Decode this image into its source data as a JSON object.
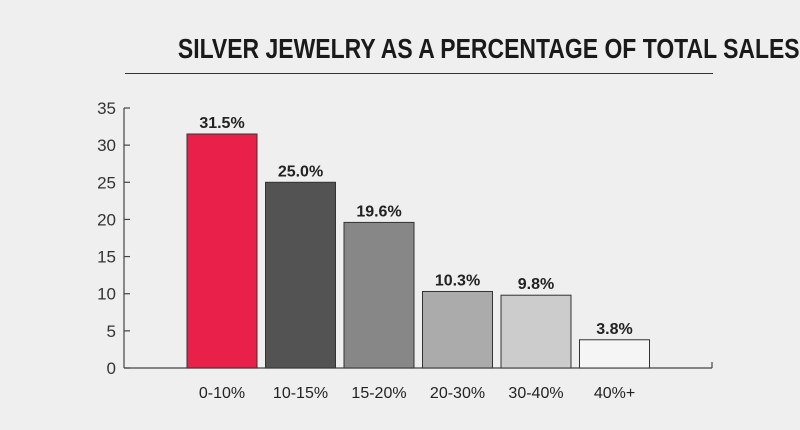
{
  "chart_data": {
    "type": "bar",
    "title": "SILVER JEWELRY AS A PERCENTAGE OF TOTAL SALES",
    "xlabel": "",
    "ylabel": "",
    "categories": [
      "0-10%",
      "10-15%",
      "15-20%",
      "20-30%",
      "30-40%",
      "40%+"
    ],
    "values": [
      31.5,
      25.0,
      19.6,
      10.3,
      9.8,
      3.8
    ],
    "data_labels": [
      "31.5%",
      "25.0%",
      "19.6%",
      "10.3%",
      "9.8%",
      "3.8%"
    ],
    "bar_colors": [
      "#e8204a",
      "#535353",
      "#878787",
      "#ababab",
      "#cccccc",
      "#f5f5f5"
    ],
    "ylim": [
      0,
      35
    ],
    "yticks": [
      0,
      5,
      10,
      15,
      20,
      25,
      30,
      35
    ],
    "grid": false,
    "legend": "none"
  }
}
